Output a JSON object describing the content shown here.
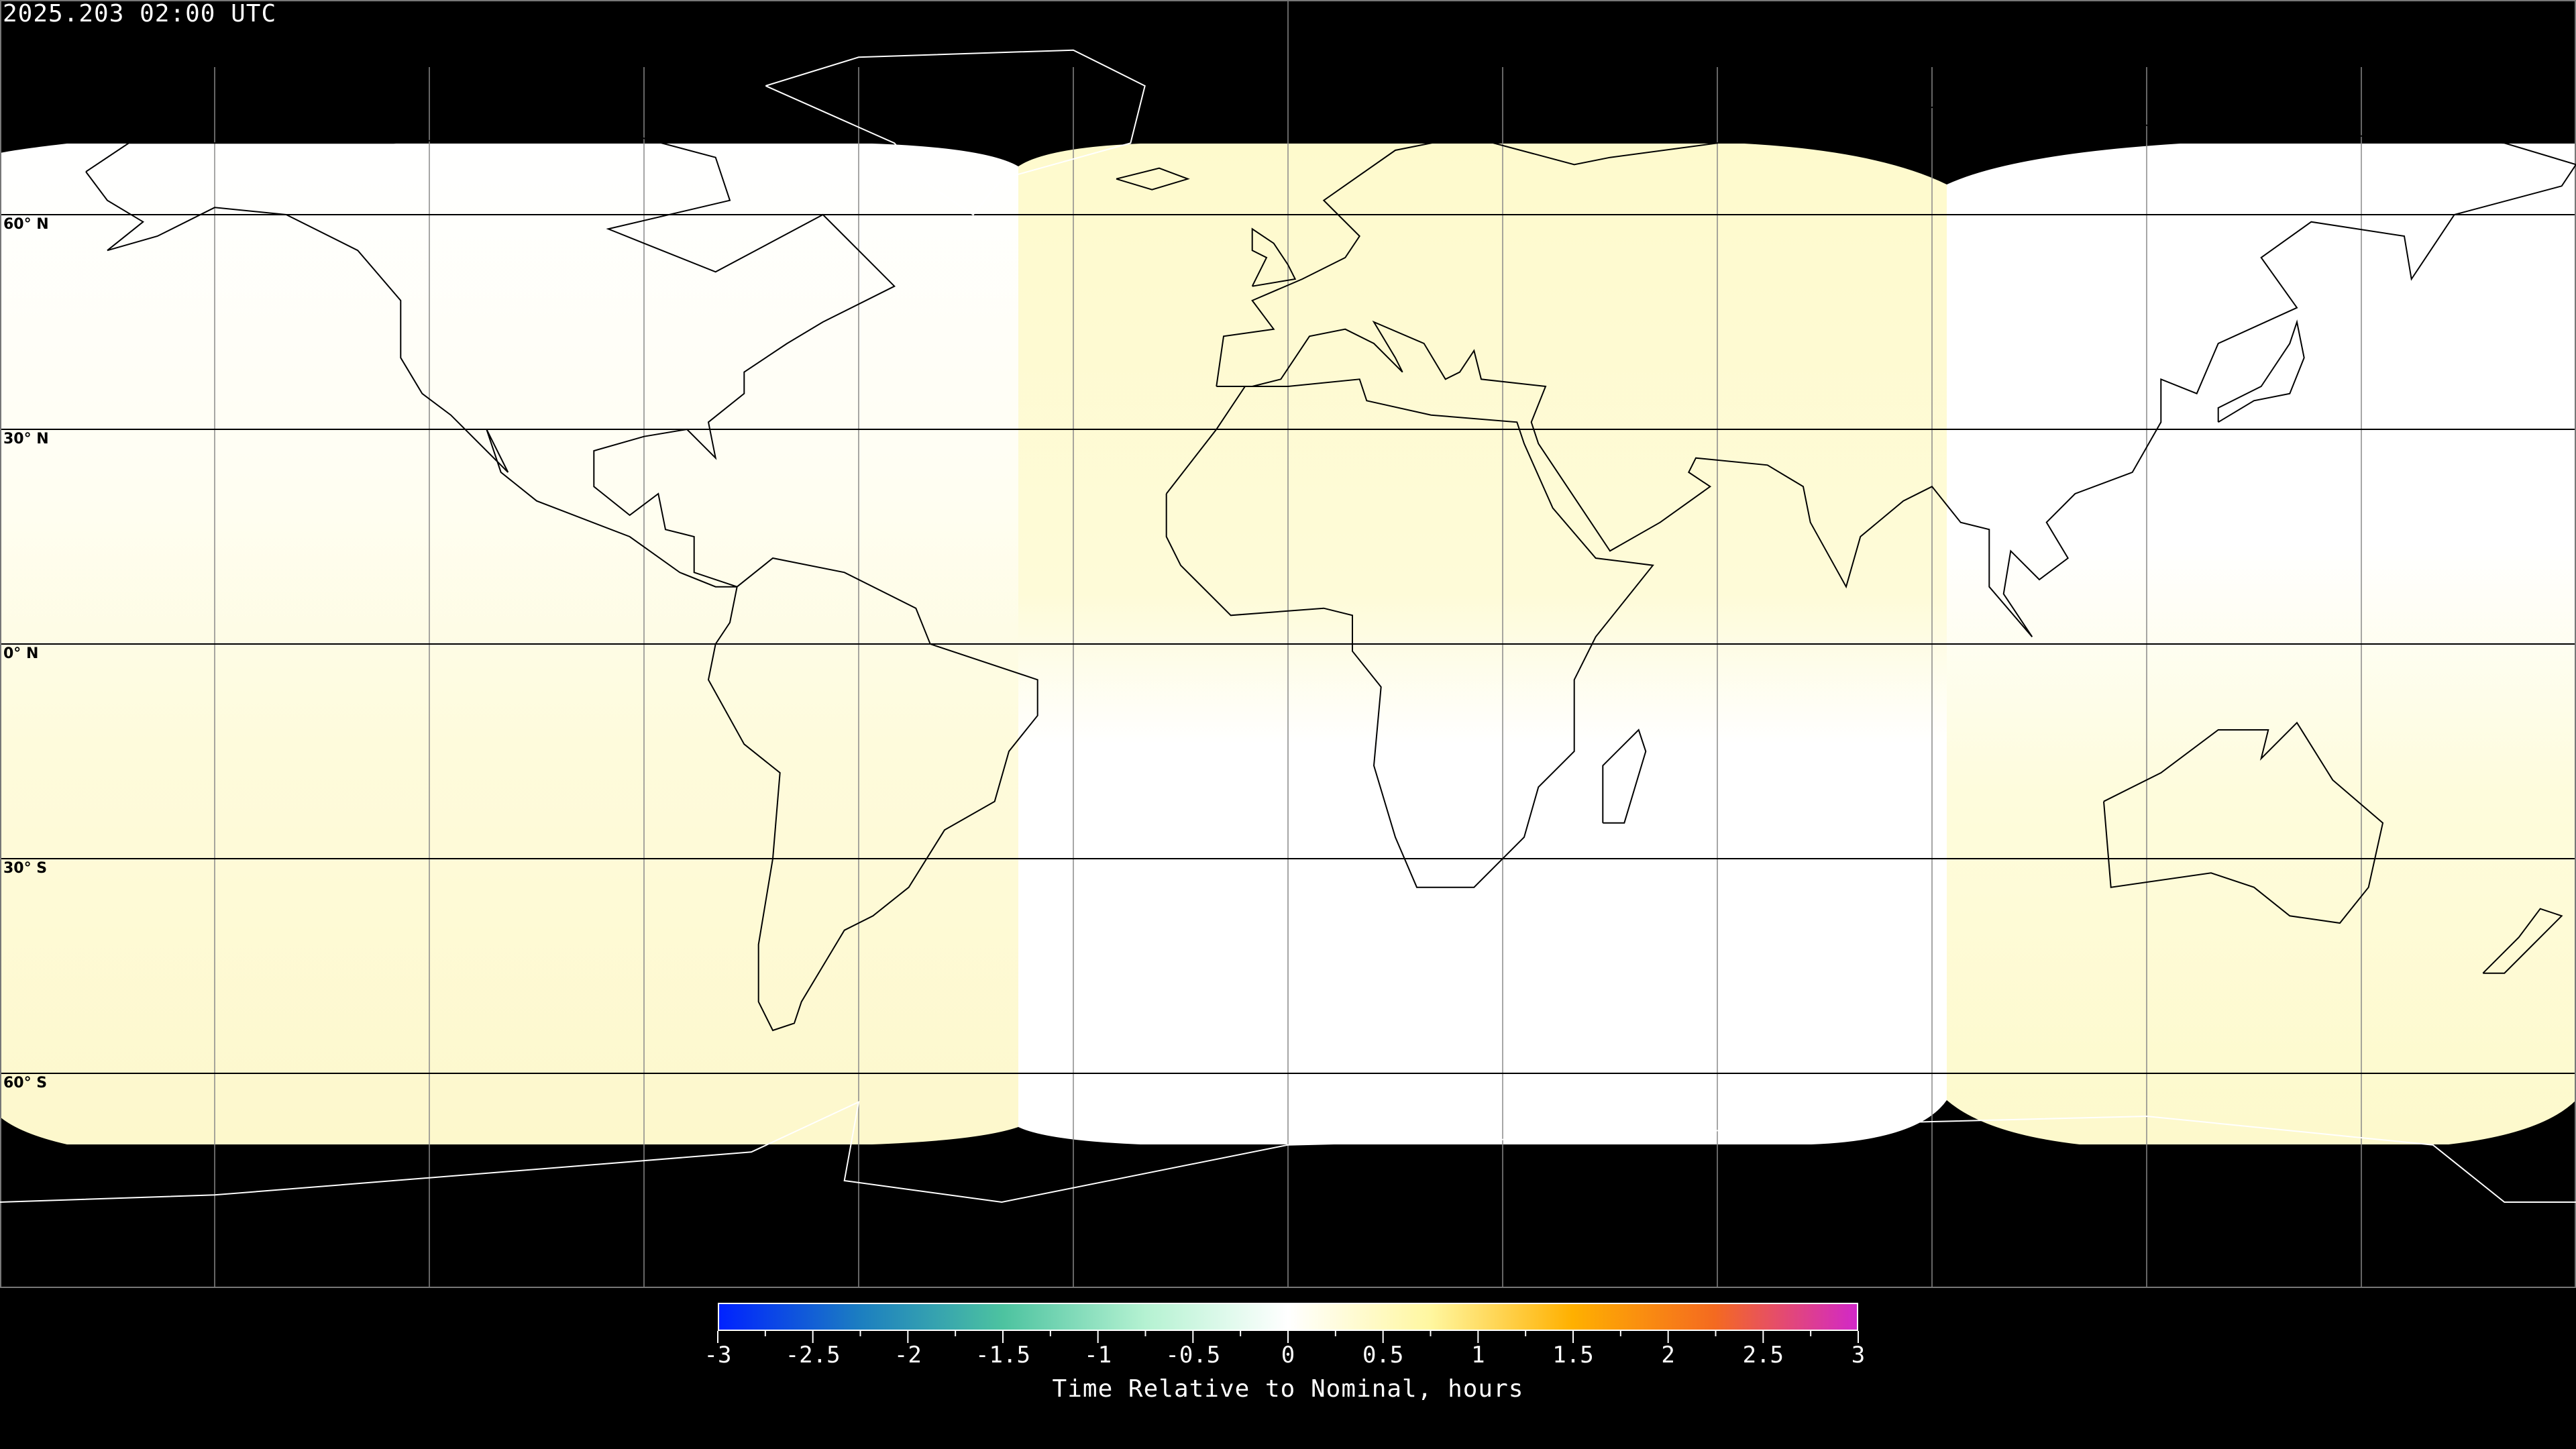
{
  "title": "2025.203 02:00 UTC",
  "map": {
    "projection": "equirectangular",
    "coverage_colors": {
      "nominal": "#ffffff",
      "slight_late": "#fefbd0"
    },
    "background": "#000000",
    "latitude_labels": [
      "60° N",
      "30° N",
      "0° N",
      "30° S",
      "60° S"
    ]
  },
  "colorbar": {
    "min": -3,
    "max": 3,
    "tick_labels": [
      "-3",
      "-2.5",
      "-2",
      "-1.5",
      "-1",
      "-0.5",
      "0",
      "0.5",
      "1",
      "1.5",
      "2",
      "2.5",
      "3"
    ],
    "label": "Time Relative to Nominal, hours",
    "colors": [
      "#0022ff",
      "#1c7fc0",
      "#4dc3a0",
      "#b5f2d2",
      "#ffffff",
      "#fff7a0",
      "#ffb000",
      "#f46a20",
      "#d228c8"
    ]
  }
}
